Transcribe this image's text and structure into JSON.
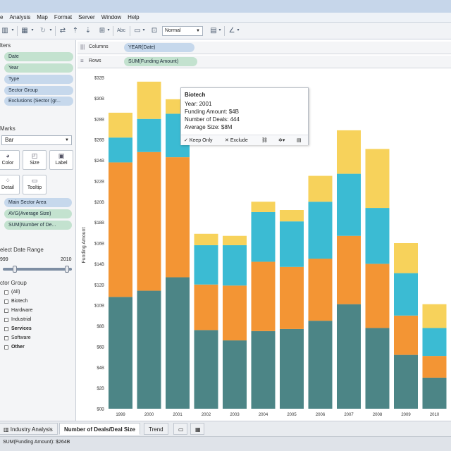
{
  "menu": [
    "e",
    "Analysis",
    "Map",
    "Format",
    "Server",
    "Window",
    "Help"
  ],
  "toolbar": {
    "fit_value": "Normal",
    "abc_label": "Abc"
  },
  "left": {
    "filters_title": "lters",
    "filters": [
      "Date",
      "Year",
      "Type",
      "Sector Group",
      "Exclusions (Sector (gr..."
    ],
    "marks_title": "Marks",
    "mark_type": "Bar",
    "mark_buttons": [
      "Color",
      "Size",
      "Label",
      "Detail",
      "Tooltip"
    ],
    "mark_fields": [
      "Main Sector Area",
      "AVG(Average Size)",
      "SUM(Number of De..."
    ],
    "date_range_title": "elect Date Range",
    "date_range_min": "999",
    "date_range_max": "2010",
    "sector_group_title": "ctor Group",
    "sector_items": [
      "(All)",
      "Biotech",
      "Hardware",
      "Industrial",
      "Services",
      "Software",
      "Other"
    ]
  },
  "shelves": {
    "columns_label": "Columns",
    "columns_pill": "YEAR(Date)",
    "rows_label": "Rows",
    "rows_pill": "SUM(Funding Amount)"
  },
  "tooltip": {
    "title": "Biotech",
    "lines": [
      "Year: 2001",
      "Funding Amount: $4B",
      "Number of Deals: 444",
      "Average Size: $8M"
    ],
    "keep_only": "Keep Only",
    "exclude": "Exclude"
  },
  "tabs": [
    "Industry Analysis",
    "Number of Deals/Deal Size",
    "Trend"
  ],
  "status": "SUM(Funding Amount): $264B",
  "colors": {
    "seg1": "#4c8586",
    "seg2": "#f39534",
    "seg3": "#3bbbd3",
    "seg4": "#f7d25b"
  },
  "chart_data": {
    "type": "bar",
    "stacked": true,
    "ylabel": "Funding Amount",
    "y_ticks": [
      "$0B",
      "$2B",
      "$4B",
      "$6B",
      "$8B",
      "$10B",
      "$12B",
      "$14B",
      "$16B",
      "$18B",
      "$20B",
      "$22B",
      "$24B",
      "$26B",
      "$28B",
      "$30B",
      "$32B"
    ],
    "ylim": [
      0,
      32
    ],
    "categories": [
      "1999",
      "2000",
      "2001",
      "2002",
      "2003",
      "2004",
      "2005",
      "2006",
      "2007",
      "2008",
      "2009",
      "2010"
    ],
    "series": [
      {
        "values": [
          10.8,
          11.4,
          12.7,
          7.6,
          6.6,
          7.5,
          7.7,
          8.5,
          10.1,
          7.8,
          5.2,
          3.0
        ]
      },
      {
        "values": [
          13.0,
          13.4,
          11.6,
          4.4,
          5.3,
          6.7,
          6.0,
          6.0,
          6.6,
          6.2,
          3.8,
          2.1
        ]
      },
      {
        "values": [
          2.4,
          3.2,
          4.2,
          3.8,
          3.9,
          4.8,
          4.4,
          5.5,
          6.0,
          5.4,
          4.1,
          2.7
        ]
      },
      {
        "values": [
          2.4,
          3.6,
          1.4,
          1.1,
          0.9,
          1.0,
          1.1,
          2.5,
          4.2,
          5.7,
          2.9,
          2.3
        ]
      }
    ]
  }
}
